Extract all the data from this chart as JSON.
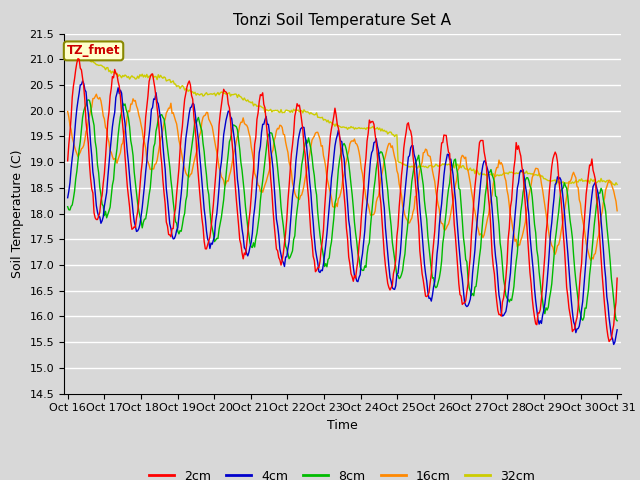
{
  "title": "Tonzi Soil Temperature Set A",
  "xlabel": "Time",
  "ylabel": "Soil Temperature (C)",
  "ylim": [
    14.5,
    21.5
  ],
  "background_color": "#d8d8d8",
  "plot_bg_color": "#d8d8d8",
  "grid_color": "white",
  "annotation_text": "TZ_fmet",
  "annotation_bg": "#ffffcc",
  "annotation_border": "#888800",
  "xtick_labels": [
    "Oct 16",
    "Oct 17",
    "Oct 18",
    "Oct 19",
    "Oct 20",
    "Oct 21",
    "Oct 22",
    "Oct 23",
    "Oct 24",
    "Oct 25",
    "Oct 26",
    "Oct 27",
    "Oct 28",
    "Oct 29",
    "Oct 30",
    "Oct 31"
  ],
  "legend_labels": [
    "2cm",
    "4cm",
    "8cm",
    "16cm",
    "32cm"
  ],
  "legend_colors": [
    "#ff0000",
    "#0000cc",
    "#00bb00",
    "#ff8800",
    "#cccc00"
  ],
  "series_colors": [
    "#ff0000",
    "#0000cc",
    "#00bb00",
    "#ff8800",
    "#cccc00"
  ],
  "n_points": 480,
  "figsize": [
    6.4,
    4.8
  ],
  "dpi": 100
}
